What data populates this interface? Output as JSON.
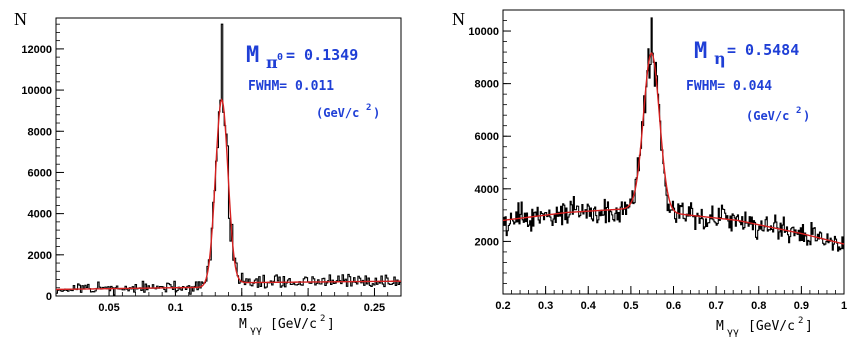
{
  "chart_data": [
    {
      "type": "line",
      "ylabel": "N",
      "xlabel": "M",
      "xlabel_sub": "γγ",
      "xlabel_unit": "[GeV/c",
      "xlabel_unit_sup": "2",
      "xlabel_unit_close": "]",
      "xlim": [
        0.01,
        0.27
      ],
      "ylim": [
        0,
        13500
      ],
      "xticks": [
        0.05,
        0.1,
        0.15,
        0.2,
        0.25
      ],
      "xtick_labels": [
        "0.05",
        "0.1",
        "0.15",
        "0.2",
        "0.25"
      ],
      "yticks": [
        0,
        2000,
        4000,
        6000,
        8000,
        10000,
        12000
      ],
      "ytick_labels": [
        "0",
        "2000",
        "4000",
        "6000",
        "8000",
        "10000",
        "12000"
      ],
      "annotation": {
        "mass_symbol": "M",
        "mass_sub": "π",
        "mass_sub_sup": "0",
        "mass_value": "= 0.1349",
        "fwhm": "FWHM= 0.011",
        "units": "(GeV/c",
        "units_sup": "2",
        "units_close": ")"
      },
      "fit": {
        "peak_mean": 0.1349,
        "peak_sigma": 0.0047,
        "peak_amplitude": 9000,
        "background_points": [
          [
            0.01,
            320
          ],
          [
            0.12,
            420
          ],
          [
            0.15,
            650
          ],
          [
            0.27,
            720
          ]
        ]
      },
      "histogram": {
        "peak_max": 13200,
        "noise_amplitude": 180,
        "bins": 240
      },
      "colors": {
        "data": "#000000",
        "fit": "#d62020"
      }
    },
    {
      "type": "line",
      "ylabel": "N",
      "xlabel": "M",
      "xlabel_sub": "γγ",
      "xlabel_unit": "[GeV/c",
      "xlabel_unit_sup": "2",
      "xlabel_unit_close": "]",
      "xlim": [
        0.2,
        1.0
      ],
      "ylim": [
        0,
        10800
      ],
      "xticks": [
        0.2,
        0.3,
        0.4,
        0.5,
        0.6,
        0.7,
        0.8,
        0.9,
        1
      ],
      "xtick_labels": [
        "0.2",
        "0.3",
        "0.4",
        "0.5",
        "0.6",
        "0.7",
        "0.8",
        "0.9",
        "1"
      ],
      "yticks": [
        2000,
        4000,
        6000,
        8000,
        10000
      ],
      "ytick_labels": [
        "2000",
        "4000",
        "6000",
        "8000",
        "10000"
      ],
      "annotation": {
        "mass_symbol": "M",
        "mass_sub": "η",
        "mass_sub_sup": "",
        "mass_value": "= 0.5484",
        "fwhm": "FWHM= 0.044",
        "units": "(GeV/c",
        "units_sup": "2",
        "units_close": ")"
      },
      "fit": {
        "peak_mean": 0.5484,
        "peak_sigma": 0.0187,
        "peak_amplitude": 6000,
        "background_points": [
          [
            0.2,
            2800
          ],
          [
            0.35,
            3100
          ],
          [
            0.5,
            3250
          ],
          [
            0.58,
            3100
          ],
          [
            0.75,
            2800
          ],
          [
            0.9,
            2300
          ],
          [
            1.0,
            1900
          ]
        ]
      },
      "histogram": {
        "peak_max": 10500,
        "noise_amplitude": 700,
        "bins": 320
      },
      "colors": {
        "data": "#000000",
        "fit": "#d62020"
      }
    }
  ]
}
